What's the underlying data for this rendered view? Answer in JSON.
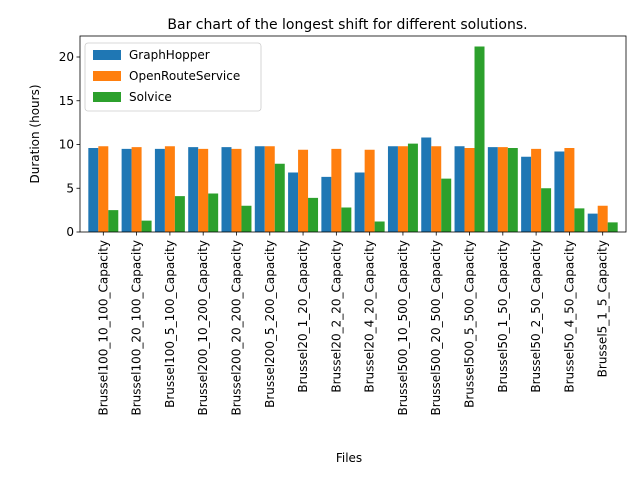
{
  "chart_data": {
    "type": "bar",
    "title": "Bar chart of the longest shift for different solutions.",
    "xlabel": "Files",
    "ylabel": "Duration (hours)",
    "ylim": [
      0,
      22.4
    ],
    "yticks": [
      0,
      5,
      10,
      15,
      20
    ],
    "legend_position": "top-left",
    "categories": [
      "Brussel100_10_100_Capacity",
      "Brussel100_20_100_Capacity",
      "Brussel100_5_100_Capacity",
      "Brussel200_10_200_Capacity",
      "Brussel200_20_200_Capacity",
      "Brussel200_5_200_Capacity",
      "Brussel20_1_20_Capacity",
      "Brussel20_2_20_Capacity",
      "Brussel20_4_20_Capacity",
      "Brussel500_10_500_Capacity",
      "Brussel500_20_500_Capacity",
      "Brussel500_5_500_Capacity",
      "Brussel50_1_50_Capacity",
      "Brussel50_2_50_Capacity",
      "Brussel50_4_50_Capacity",
      "Brussel5_1_5_Capacity"
    ],
    "series": [
      {
        "name": "GraphHopper",
        "color": "#1f77b4",
        "values": [
          9.6,
          9.5,
          9.5,
          9.7,
          9.7,
          9.8,
          6.8,
          6.3,
          6.8,
          9.8,
          10.8,
          9.8,
          9.7,
          8.6,
          9.2,
          2.1
        ]
      },
      {
        "name": "OpenRouteService",
        "color": "#ff7f0e",
        "values": [
          9.8,
          9.7,
          9.8,
          9.5,
          9.5,
          9.8,
          9.4,
          9.5,
          9.4,
          9.8,
          9.8,
          9.6,
          9.7,
          9.5,
          9.6,
          3.0
        ]
      },
      {
        "name": "Solvice",
        "color": "#2ca02c",
        "values": [
          2.5,
          1.3,
          4.1,
          4.4,
          3.0,
          7.8,
          3.9,
          2.8,
          1.2,
          10.1,
          6.1,
          21.2,
          9.6,
          5.0,
          2.7,
          1.1
        ]
      }
    ]
  }
}
